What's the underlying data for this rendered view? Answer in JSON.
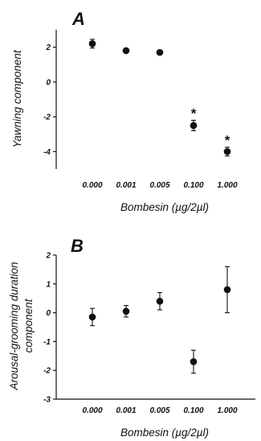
{
  "chart_data": [
    {
      "type": "scatter",
      "panel_label": "A",
      "categories": [
        "0.000",
        "0.001",
        "0.005",
        "0.100",
        "1.000"
      ],
      "values": [
        2.2,
        1.8,
        1.7,
        -2.5,
        -4.0
      ],
      "errors": [
        0.25,
        0.1,
        0.1,
        0.3,
        0.25
      ],
      "annotations": [
        "",
        "",
        "",
        "*",
        "*"
      ],
      "xlabel": "Bombesin (µg/2µl)",
      "ylabel": "Yawning component",
      "ylim": [
        -5,
        3
      ],
      "yticks": [
        "-4",
        "-2",
        "0",
        "2"
      ],
      "grid": false,
      "color": "#111111"
    },
    {
      "type": "scatter",
      "panel_label": "B",
      "categories": [
        "0.000",
        "0.001",
        "0.005",
        "0.100",
        "1.000"
      ],
      "values": [
        -0.15,
        0.05,
        0.4,
        -1.7,
        0.8
      ],
      "errors": [
        0.3,
        0.2,
        0.3,
        0.4,
        0.8
      ],
      "annotations": [
        "",
        "",
        "",
        "",
        ""
      ],
      "xlabel": "Bombesin (µg/2µl)",
      "ylabel": "Arousal-grooming duration component",
      "ylabel_lines": [
        "Arousal-grooming duration",
        "component"
      ],
      "ylim": [
        -3,
        2
      ],
      "yticks": [
        "-3",
        "-2",
        "-1",
        "0",
        "1",
        "2"
      ],
      "grid": false,
      "color": "#111111"
    }
  ]
}
